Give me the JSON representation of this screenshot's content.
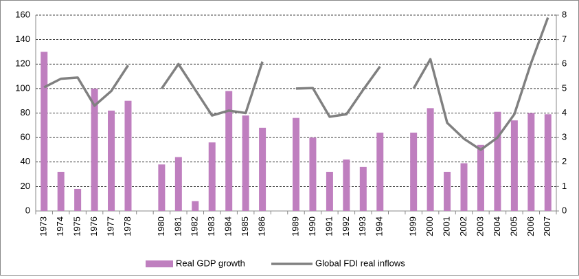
{
  "chart_data": {
    "type": "bar-line",
    "categories": [
      "1973",
      "1974",
      "1975",
      "1976",
      "1977",
      "1978",
      null,
      "1980",
      "1981",
      "1982",
      "1983",
      "1984",
      "1985",
      "1986",
      null,
      "1989",
      "1990",
      "1991",
      "1992",
      "1993",
      "1994",
      null,
      "1999",
      "2000",
      "2001",
      "2002",
      "2003",
      "2004",
      "2005",
      "2006",
      "2007"
    ],
    "series": [
      {
        "name": "Real GDP growth",
        "type": "bar",
        "color": "#bf7fbf",
        "values": [
          130,
          32,
          18,
          100,
          82,
          90,
          null,
          38,
          44,
          8,
          56,
          98,
          78,
          68,
          null,
          76,
          60,
          32,
          42,
          36,
          64,
          null,
          64,
          84,
          32,
          39,
          54,
          81,
          74,
          80,
          79
        ]
      },
      {
        "name": "Global FDI real inflows",
        "type": "line",
        "axis": "y2",
        "color": "#808080",
        "values": [
          5.05,
          5.4,
          5.45,
          4.3,
          4.9,
          5.95,
          null,
          5.0,
          6.0,
          4.95,
          3.9,
          4.1,
          4.0,
          6.1,
          null,
          5.0,
          5.02,
          3.85,
          3.95,
          4.95,
          5.9,
          null,
          5.0,
          6.2,
          3.6,
          2.95,
          2.5,
          3.0,
          3.95,
          6.05,
          7.9
        ]
      }
    ],
    "ylim": [
      0,
      160
    ],
    "yticks": [
      0,
      20,
      40,
      60,
      80,
      100,
      120,
      140,
      160
    ],
    "y2lim": [
      0,
      8
    ],
    "y2ticks": [
      0,
      1,
      2,
      3,
      4,
      5,
      6,
      7,
      8
    ],
    "grid": true,
    "legend": "bottom"
  }
}
